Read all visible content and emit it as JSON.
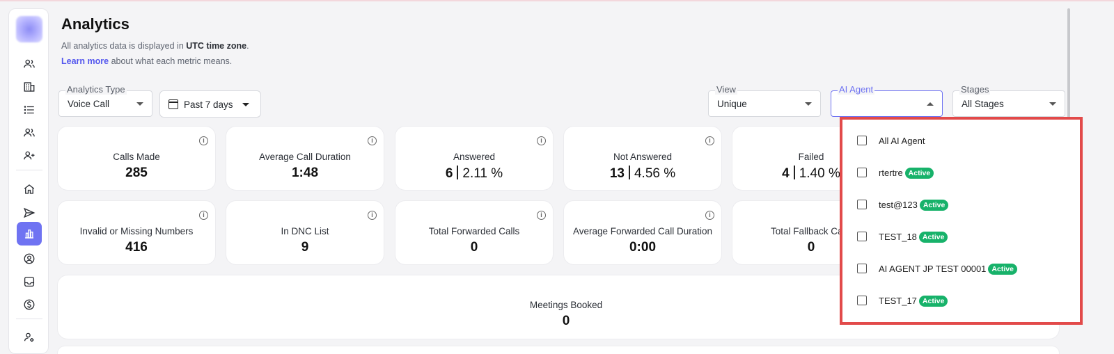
{
  "header": {
    "title": "Analytics",
    "subtitle_prefix": "All analytics data is displayed in ",
    "subtitle_bold": "UTC time zone",
    "subtitle_suffix": ".",
    "learn_link": "Learn more",
    "learn_suffix": " about what each metric means."
  },
  "filters": {
    "analytics_type": {
      "label": "Analytics Type",
      "value": "Voice Call"
    },
    "date_range": {
      "value": "Past 7 days"
    },
    "view": {
      "label": "View",
      "value": "Unique"
    },
    "ai_agent": {
      "label": "AI Agent",
      "value": ""
    },
    "stages": {
      "label": "Stages",
      "value": "All Stages"
    }
  },
  "metrics_row1": [
    {
      "label": "Calls Made",
      "value": "285"
    },
    {
      "label": "Average Call Duration",
      "value": "1:48"
    },
    {
      "label": "Answered",
      "count": "6",
      "percent": "2.11 %"
    },
    {
      "label": "Not Answered",
      "count": "13",
      "percent": "4.56 %"
    },
    {
      "label": "Failed",
      "count": "4",
      "percent": "1.40 %"
    }
  ],
  "metrics_row2": [
    {
      "label": "Invalid or Missing Numbers",
      "value": "416"
    },
    {
      "label": "In DNC List",
      "value": "9"
    },
    {
      "label": "Total Forwarded Calls",
      "value": "0"
    },
    {
      "label": "Average Forwarded Call Duration",
      "value": "0:00"
    },
    {
      "label": "Total Fallback Calls",
      "value": "0"
    }
  ],
  "meetings": {
    "label": "Meetings Booked",
    "value": "0"
  },
  "agent_dropdown": {
    "options": [
      {
        "label": "All AI Agent",
        "badge": ""
      },
      {
        "label": "rtertre",
        "badge": "Active"
      },
      {
        "label": "test@123",
        "badge": "Active"
      },
      {
        "label": "TEST_18",
        "badge": "Active"
      },
      {
        "label": "AI AGENT JP TEST 00001",
        "badge": "Active"
      },
      {
        "label": "TEST_17",
        "badge": "Active"
      }
    ]
  },
  "colors": {
    "accent": "#6f73f2",
    "active_badge": "#17b26a",
    "highlight_border": "#e24a4a"
  },
  "icons": {
    "sidebar": [
      "users-icon",
      "building-icon",
      "list-icon",
      "contacts-icon",
      "add-user-icon",
      "home-icon",
      "send-icon",
      "analytics-icon",
      "account-icon",
      "inbox-icon",
      "billing-icon",
      "user-settings-icon"
    ]
  }
}
